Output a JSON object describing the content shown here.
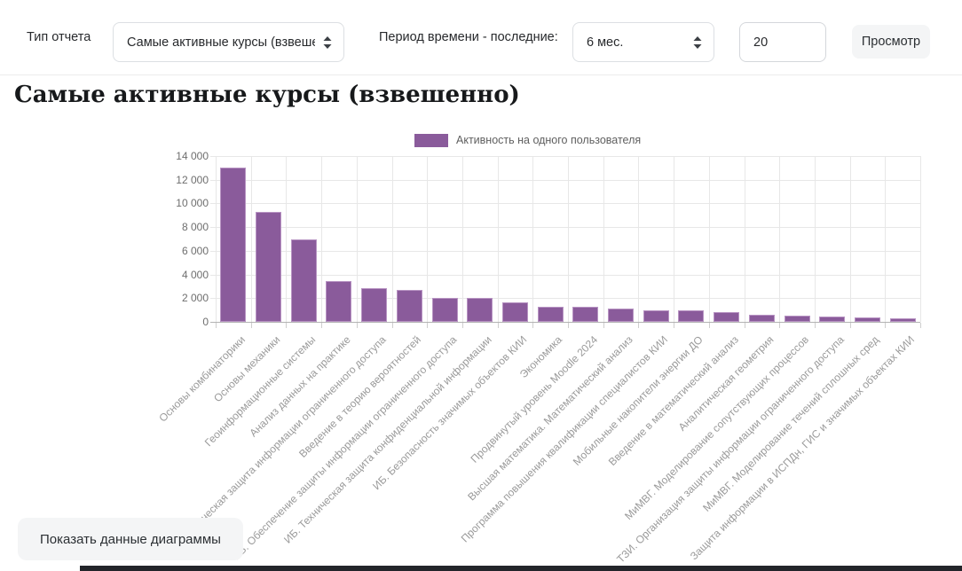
{
  "controls": {
    "report_type_label": "Тип отчета",
    "report_type_value": "Самые активные курсы (взвешенно)",
    "period_label": "Период времени - последние:",
    "period_value": "6 мес.",
    "limit_value": "20",
    "submit_label": "Просмотр"
  },
  "page_title": "Самые активные курсы (взвешенно)",
  "chart_data": {
    "type": "bar",
    "title": "Самые активные курсы (взвешенно)",
    "legend_position": "top",
    "grid": true,
    "ylim": [
      0,
      14000
    ],
    "ytick_step": 2000,
    "ytick_labels": [
      "0",
      "2 000",
      "4 000",
      "6 000",
      "8 000",
      "10 000",
      "12 000",
      "14 000"
    ],
    "categories": [
      "Основы комбинаторики",
      "Основы механики",
      "Геоинформационные системы",
      "Анализ данных на практике",
      "Техническая защита информации ограниченного доступа",
      "Введение в теорию вероятностей",
      "ИБ. Обеспечение защиты информации ограниченного доступа",
      "ИБ. Техническая защита конфиденциальной информации",
      "ИБ. Безопасность значимых объектов КИИ",
      "Экономика",
      "Продвинутый уровень Moodle 2024",
      "Высшая математика. Математический анализ",
      "Программа повышения квалификации специалистов КИИ",
      "Мобильные накопители энергии ДО",
      "Введение в математический анализ",
      "Аналитическая геометрия",
      "МиМВГ. Моделирование сопутствующих процессов",
      "ТЗИ. Организация защиты информации ограниченного доступа",
      "МиМВГ. Моделирование течений сплошных сред",
      "Защита информации в ИСПДн, ГИС и значимых объектах КИИ"
    ],
    "series": [
      {
        "name": "Активность на одного пользователя",
        "values": [
          13000,
          9250,
          7000,
          3450,
          2850,
          2700,
          2050,
          2000,
          1650,
          1300,
          1250,
          1100,
          1000,
          950,
          850,
          620,
          560,
          470,
          400,
          300
        ]
      }
    ],
    "bar_color": "#8a5b9b",
    "bar_border_color": "#b894c3"
  },
  "footer": {
    "show_data_label": "Показать данные диаграммы"
  },
  "colors": {
    "accent_purple": "#8a5b9b",
    "control_border": "#dcdfe3",
    "button_bg": "#f4f5f6",
    "grid": "#e7e7e7",
    "axis": "#b3b3b3",
    "x_label": "#9a9a9a"
  }
}
